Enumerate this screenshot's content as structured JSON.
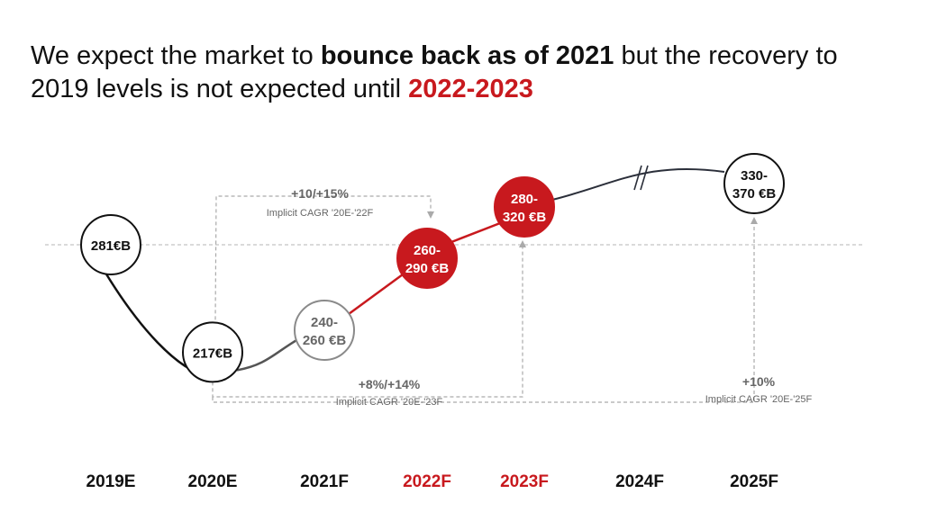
{
  "title": {
    "part1": "We expect the market to ",
    "bold": "bounce back as of 2021",
    "part2": " but the recovery to 2019 levels is not expected until ",
    "highlight": "2022-2023"
  },
  "colors": {
    "accent": "#c8191e",
    "dark_line": "#2b2f3a",
    "grey": "#888888",
    "dashed": "#aaaaaa",
    "black": "#111111"
  },
  "chart_data": {
    "type": "line",
    "categories": [
      "2019E",
      "2020E",
      "2021F",
      "2022F",
      "2023F",
      "2024F",
      "2025F"
    ],
    "highlight_categories": [
      "2022F",
      "2023F"
    ],
    "points": [
      {
        "category": "2019E",
        "label_lines": [
          "281€B"
        ],
        "value": 281,
        "style": "outline"
      },
      {
        "category": "2020E",
        "label_lines": [
          "217€B"
        ],
        "value": 217,
        "style": "outline"
      },
      {
        "category": "2021F",
        "label_lines": [
          "240-",
          "260 €B"
        ],
        "value_range": [
          240,
          260
        ],
        "style": "grey"
      },
      {
        "category": "2022F",
        "label_lines": [
          "260-",
          "290 €B"
        ],
        "value_range": [
          260,
          290
        ],
        "style": "filled"
      },
      {
        "category": "2023F",
        "label_lines": [
          "280-",
          "320 €B"
        ],
        "value_range": [
          280,
          320
        ],
        "style": "filled"
      },
      {
        "category": "2025F",
        "label_lines": [
          "330-",
          "370 €B"
        ],
        "value_range": [
          330,
          370
        ],
        "style": "outline"
      }
    ],
    "reference_line": {
      "value": 281,
      "style": "dashed"
    },
    "axis_break_between": [
      "2024F",
      "2025F"
    ],
    "annotations": [
      {
        "id": "cagr22",
        "value": "+10/+15%",
        "caption": "Implicit CAGR '20E-'22F"
      },
      {
        "id": "cagr23",
        "value": "+8%/+14%",
        "caption": "Implicit CAGR '20E-'23F"
      },
      {
        "id": "cagr25",
        "value": "+10%",
        "caption": "Implicit CAGR '20E-'25F"
      }
    ]
  }
}
